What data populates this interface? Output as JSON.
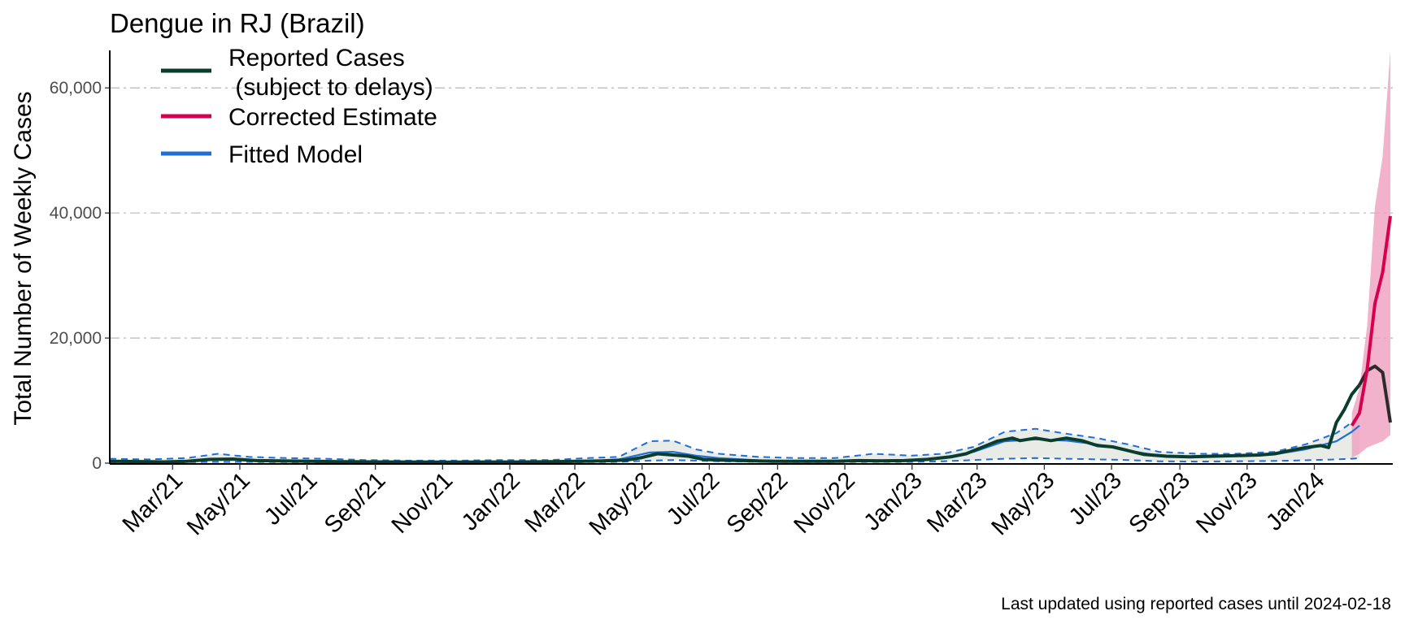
{
  "chart_data": {
    "type": "line",
    "title": "Dengue in RJ (Brazil)",
    "ylabel": "Total Number of Weekly Cases",
    "xlabel": "",
    "caption": "Last updated using reported cases until 2024-02-18",
    "ylim": [
      0,
      66000
    ],
    "x_range": [
      "2021-01-03",
      "2024-02-25"
    ],
    "y_ticks": [
      {
        "value": 0,
        "label": "0"
      },
      {
        "value": 20000,
        "label": "20,000"
      },
      {
        "value": 40000,
        "label": "40,000"
      },
      {
        "value": 60000,
        "label": "60,000"
      }
    ],
    "x_ticks": [
      {
        "date": "2021-03-01",
        "label": "Mar/21"
      },
      {
        "date": "2021-05-01",
        "label": "May/21"
      },
      {
        "date": "2021-07-01",
        "label": "Jul/21"
      },
      {
        "date": "2021-09-01",
        "label": "Sep/21"
      },
      {
        "date": "2021-11-01",
        "label": "Nov/21"
      },
      {
        "date": "2022-01-01",
        "label": "Jan/22"
      },
      {
        "date": "2022-03-01",
        "label": "Mar/22"
      },
      {
        "date": "2022-05-01",
        "label": "May/22"
      },
      {
        "date": "2022-07-01",
        "label": "Jul/22"
      },
      {
        "date": "2022-09-01",
        "label": "Sep/22"
      },
      {
        "date": "2022-11-01",
        "label": "Nov/22"
      },
      {
        "date": "2023-01-01",
        "label": "Jan/23"
      },
      {
        "date": "2023-03-01",
        "label": "Mar/23"
      },
      {
        "date": "2023-05-01",
        "label": "May/23"
      },
      {
        "date": "2023-07-01",
        "label": "Jul/23"
      },
      {
        "date": "2023-09-01",
        "label": "Sep/23"
      },
      {
        "date": "2023-11-01",
        "label": "Nov/23"
      },
      {
        "date": "2024-01-01",
        "label": "Jan/24"
      }
    ],
    "grid": "horizontal dash-dot",
    "legend": {
      "position": "top-left",
      "entries": [
        {
          "label": "Reported Cases",
          "label_line2": " (subject to delays)",
          "color": "#0b3d2e"
        },
        {
          "label": "Corrected Estimate",
          "color": "#d6004f"
        },
        {
          "label": "Fitted Model",
          "color": "#1f6fd6"
        }
      ]
    },
    "colors": {
      "reported": "#0b3d2e",
      "reported_delayed": "#2b2b2b",
      "corrected": "#d6004f",
      "corrected_band": "#ef9fbf",
      "fitted": "#1f6fd6",
      "fitted_band": "#e8eae6",
      "grid": "#bdbdbd"
    },
    "series": [
      {
        "name": "Reported Cases",
        "points": [
          [
            "2021-01-03",
            300
          ],
          [
            "2021-01-31",
            250
          ],
          [
            "2021-02-21",
            200
          ],
          [
            "2021-03-14",
            300
          ],
          [
            "2021-04-04",
            600
          ],
          [
            "2021-04-25",
            650
          ],
          [
            "2021-05-16",
            400
          ],
          [
            "2021-06-06",
            350
          ],
          [
            "2021-07-04",
            300
          ],
          [
            "2021-08-01",
            220
          ],
          [
            "2021-09-05",
            200
          ],
          [
            "2021-10-03",
            180
          ],
          [
            "2021-11-07",
            150
          ],
          [
            "2021-12-05",
            180
          ],
          [
            "2022-01-09",
            180
          ],
          [
            "2022-02-06",
            220
          ],
          [
            "2022-03-06",
            300
          ],
          [
            "2022-03-27",
            350
          ],
          [
            "2022-04-17",
            500
          ],
          [
            "2022-05-01",
            900
          ],
          [
            "2022-05-15",
            1500
          ],
          [
            "2022-05-29",
            1300
          ],
          [
            "2022-06-12",
            1100
          ],
          [
            "2022-06-26",
            600
          ],
          [
            "2022-07-10",
            500
          ],
          [
            "2022-07-31",
            400
          ],
          [
            "2022-08-28",
            300
          ],
          [
            "2022-09-25",
            300
          ],
          [
            "2022-10-23",
            300
          ],
          [
            "2022-11-13",
            400
          ],
          [
            "2022-12-04",
            350
          ],
          [
            "2022-12-25",
            400
          ],
          [
            "2023-01-15",
            600
          ],
          [
            "2023-02-05",
            1000
          ],
          [
            "2023-02-19",
            1500
          ],
          [
            "2023-03-05",
            2500
          ],
          [
            "2023-03-19",
            3500
          ],
          [
            "2023-04-02",
            4000
          ],
          [
            "2023-04-09",
            3600
          ],
          [
            "2023-04-23",
            4000
          ],
          [
            "2023-05-07",
            3600
          ],
          [
            "2023-05-21",
            4000
          ],
          [
            "2023-06-04",
            3600
          ],
          [
            "2023-06-18",
            2800
          ],
          [
            "2023-07-02",
            2600
          ],
          [
            "2023-07-16",
            2000
          ],
          [
            "2023-07-30",
            1400
          ],
          [
            "2023-08-20",
            1100
          ],
          [
            "2023-09-10",
            1000
          ],
          [
            "2023-10-01",
            1100
          ],
          [
            "2023-10-22",
            1200
          ],
          [
            "2023-11-12",
            1300
          ],
          [
            "2023-11-26",
            1500
          ],
          [
            "2023-12-10",
            2000
          ],
          [
            "2023-12-24",
            2500
          ],
          [
            "2024-01-07",
            2800
          ],
          [
            "2024-01-14",
            2500
          ],
          [
            "2024-01-21",
            6500
          ],
          [
            "2024-01-28",
            8500
          ],
          [
            "2024-02-04",
            11000
          ],
          [
            "2024-02-11",
            12500
          ]
        ]
      },
      {
        "name": "Reported Cases (recent, subject to delays)",
        "points": [
          [
            "2024-02-11",
            12500
          ],
          [
            "2024-02-18",
            14800
          ],
          [
            "2024-02-25",
            15500
          ],
          [
            "2024-03-03",
            14500
          ],
          [
            "2024-03-10",
            6500
          ]
        ]
      },
      {
        "name": "Corrected Estimate",
        "points": [
          [
            "2024-02-04",
            6000
          ],
          [
            "2024-02-11",
            8000
          ],
          [
            "2024-02-18",
            15000
          ],
          [
            "2024-02-25",
            25500
          ],
          [
            "2024-03-03",
            30500
          ],
          [
            "2024-03-10",
            39500
          ]
        ],
        "lower": [
          900,
          1500,
          2500,
          3000,
          3500,
          4500
        ],
        "upper": [
          8000,
          12000,
          22000,
          41000,
          49000,
          66000
        ]
      },
      {
        "name": "Fitted Model",
        "points": [
          [
            "2021-01-03",
            250
          ],
          [
            "2021-02-07",
            250
          ],
          [
            "2021-03-14",
            300
          ],
          [
            "2021-04-11",
            700
          ],
          [
            "2021-05-09",
            500
          ],
          [
            "2021-06-13",
            400
          ],
          [
            "2021-07-18",
            300
          ],
          [
            "2021-08-22",
            250
          ],
          [
            "2021-10-03",
            200
          ],
          [
            "2021-11-14",
            200
          ],
          [
            "2021-12-26",
            220
          ],
          [
            "2022-02-06",
            250
          ],
          [
            "2022-03-13",
            350
          ],
          [
            "2022-04-10",
            600
          ],
          [
            "2022-05-08",
            1700
          ],
          [
            "2022-05-29",
            1800
          ],
          [
            "2022-06-19",
            1200
          ],
          [
            "2022-07-10",
            800
          ],
          [
            "2022-08-14",
            450
          ],
          [
            "2022-09-18",
            300
          ],
          [
            "2022-10-23",
            350
          ],
          [
            "2022-11-27",
            450
          ],
          [
            "2023-01-01",
            500
          ],
          [
            "2023-01-29",
            900
          ],
          [
            "2023-02-26",
            1800
          ],
          [
            "2023-03-26",
            3500
          ],
          [
            "2023-04-23",
            3800
          ],
          [
            "2023-05-21",
            3600
          ],
          [
            "2023-06-18",
            3000
          ],
          [
            "2023-07-16",
            2000
          ],
          [
            "2023-08-13",
            1200
          ],
          [
            "2023-09-17",
            1000
          ],
          [
            "2023-10-22",
            1100
          ],
          [
            "2023-11-26",
            1400
          ],
          [
            "2023-12-24",
            2200
          ],
          [
            "2024-01-21",
            3500
          ],
          [
            "2024-02-04",
            5000
          ],
          [
            "2024-02-11",
            6000
          ]
        ],
        "lower": [
          100,
          100,
          150,
          200,
          200,
          150,
          120,
          100,
          100,
          100,
          100,
          100,
          150,
          200,
          400,
          500,
          400,
          300,
          200,
          150,
          150,
          200,
          200,
          300,
          500,
          700,
          800,
          700,
          600,
          500,
          300,
          250,
          300,
          350,
          450,
          600,
          700,
          800
        ],
        "upper": [
          700,
          600,
          800,
          1500,
          1000,
          800,
          700,
          500,
          400,
          400,
          500,
          500,
          800,
          1000,
          3500,
          3600,
          2200,
          1500,
          1000,
          800,
          800,
          1500,
          1200,
          1500,
          2600,
          5000,
          5500,
          4700,
          4000,
          3000,
          1800,
          1500,
          1500,
          1800,
          3000,
          4800,
          6500,
          8000
        ]
      }
    ]
  }
}
